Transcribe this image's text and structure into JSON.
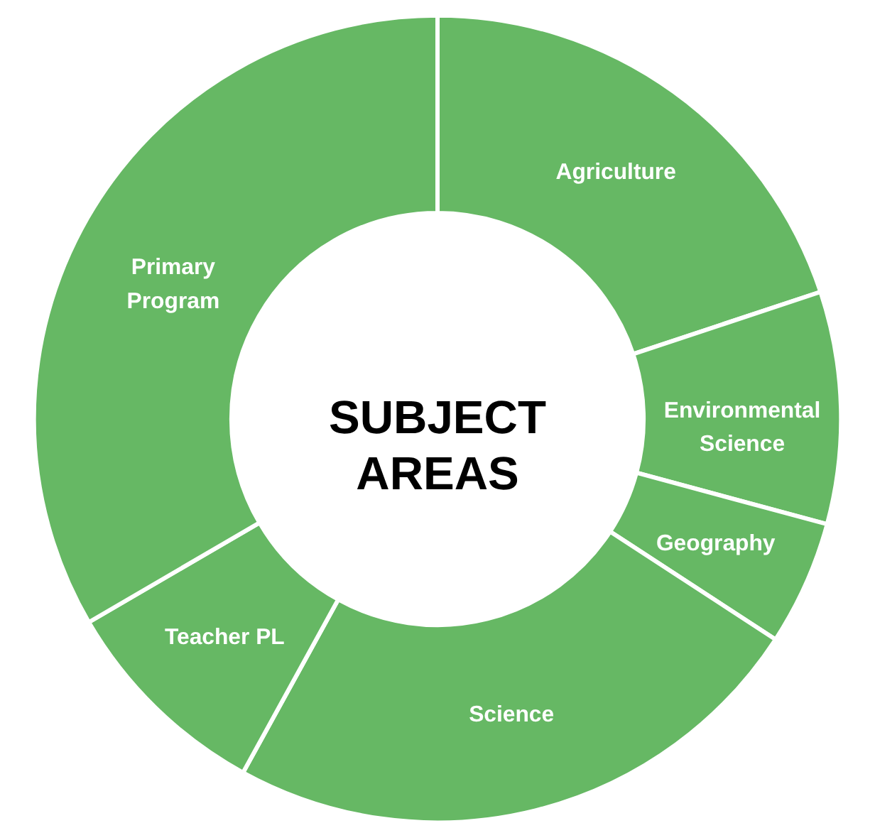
{
  "chart_data": {
    "type": "donut",
    "title": "SUBJECT AREAS",
    "categories": [
      "Agriculture",
      "Environmental Science",
      "Geography",
      "Science",
      "Teacher PL",
      "Primary Program"
    ],
    "values": [
      19.9,
      9.3,
      5.0,
      23.8,
      8.6,
      33.4
    ],
    "colors": [
      "#66b864",
      "#66b864",
      "#66b864",
      "#66b864",
      "#66b864",
      "#66b864"
    ]
  }
}
